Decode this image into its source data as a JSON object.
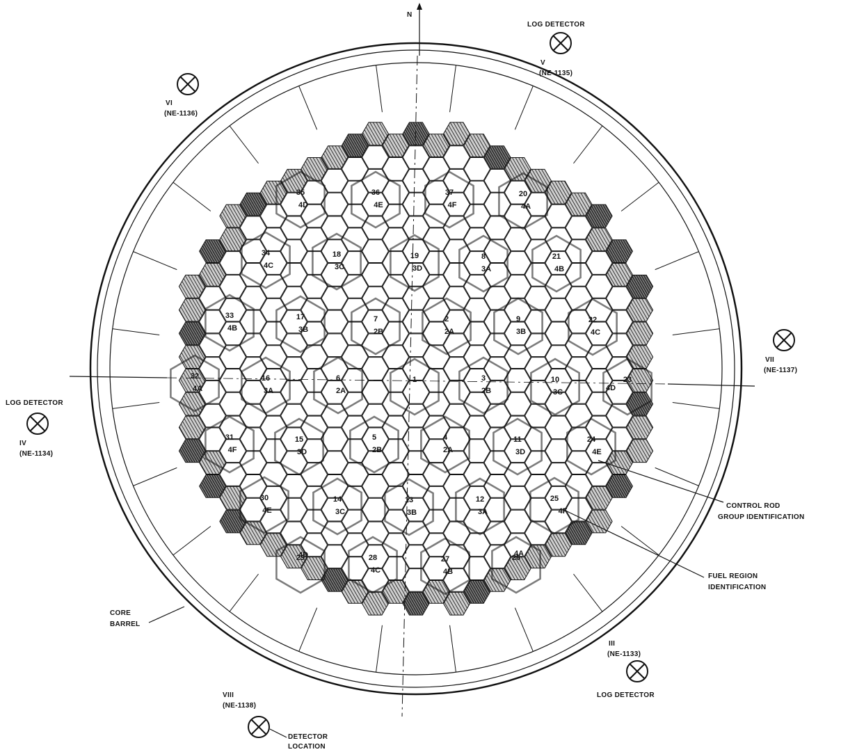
{
  "north_label": "N",
  "detectors": [
    {
      "id": "v",
      "numeral": "V",
      "tag": "(NE-1135)",
      "title": "LOG DETECTOR",
      "note": ""
    },
    {
      "id": "vi",
      "numeral": "VI",
      "tag": "(NE-1136)",
      "title": "",
      "note": ""
    },
    {
      "id": "vii",
      "numeral": "VII",
      "tag": "(NE-1137)",
      "title": "",
      "note": ""
    },
    {
      "id": "iv",
      "numeral": "IV",
      "tag": "(NE-1134)",
      "title": "LOG DETECTOR",
      "note": ""
    },
    {
      "id": "iii",
      "numeral": "III",
      "tag": "(NE-1133)",
      "title": "LOG DETECTOR",
      "note": ""
    },
    {
      "id": "viii",
      "numeral": "VIII",
      "tag": "(NE-1138)",
      "title": "",
      "note": "DETECTOR LOCATION"
    }
  ],
  "callouts": {
    "control_rod": [
      "CONTROL ROD",
      "GROUP IDENTIFICATION"
    ],
    "fuel_region": [
      "FUEL REGION",
      "IDENTIFICATION"
    ],
    "core_barrel": [
      "CORE",
      "BARREL"
    ]
  },
  "rod_groups": [
    {
      "num": "1",
      "region": ""
    },
    {
      "num": "2",
      "region": "2A"
    },
    {
      "num": "3",
      "region": "2B"
    },
    {
      "num": "4",
      "region": "2A"
    },
    {
      "num": "5",
      "region": "2B"
    },
    {
      "num": "6",
      "region": "2A"
    },
    {
      "num": "7",
      "region": "2B"
    },
    {
      "num": "8",
      "region": "3A"
    },
    {
      "num": "9",
      "region": "3B"
    },
    {
      "num": "10",
      "region": "3C"
    },
    {
      "num": "11",
      "region": "3D"
    },
    {
      "num": "12",
      "region": "3A"
    },
    {
      "num": "13",
      "region": "3B"
    },
    {
      "num": "14",
      "region": "3C"
    },
    {
      "num": "15",
      "region": "3D"
    },
    {
      "num": "16",
      "region": "3A"
    },
    {
      "num": "17",
      "region": "3B"
    },
    {
      "num": "18",
      "region": "3C"
    },
    {
      "num": "19",
      "region": "3D"
    },
    {
      "num": "20",
      "region": "4A"
    },
    {
      "num": "21",
      "region": "4B"
    },
    {
      "num": "22",
      "region": "4C"
    },
    {
      "num": "23",
      "region": "4D"
    },
    {
      "num": "24",
      "region": "4E"
    },
    {
      "num": "25",
      "region": "4F"
    },
    {
      "num": "26",
      "region": "4A"
    },
    {
      "num": "27",
      "region": "4B"
    },
    {
      "num": "28",
      "region": "4C"
    },
    {
      "num": "29",
      "region": "4D"
    },
    {
      "num": "30",
      "region": "4E"
    },
    {
      "num": "31",
      "region": "4F"
    },
    {
      "num": "32",
      "region": "4A"
    },
    {
      "num": "33",
      "region": "4B"
    },
    {
      "num": "34",
      "region": "4C"
    },
    {
      "num": "35",
      "region": "4D"
    },
    {
      "num": "36",
      "region": "4E"
    },
    {
      "num": "37",
      "region": "4F"
    }
  ]
}
